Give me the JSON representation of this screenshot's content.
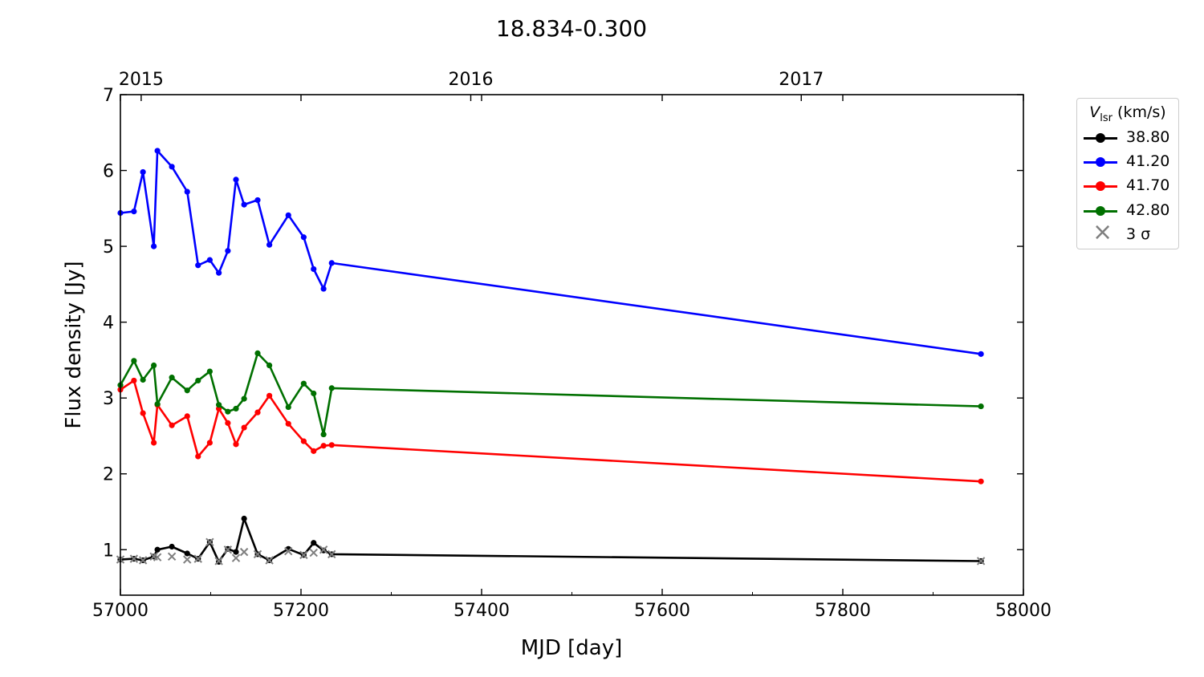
{
  "chart_data": {
    "type": "line",
    "title": "18.834-0.300",
    "xlabel": "MJD [day]",
    "ylabel": "Flux density [Jy]",
    "xlim": [
      57000,
      58000
    ],
    "ylim": [
      0.4,
      7.0
    ],
    "x_ticks": [
      "57000",
      "57200",
      "57400",
      "57600",
      "57800",
      "58000"
    ],
    "y_ticks": [
      "1",
      "2",
      "3",
      "4",
      "5",
      "6",
      "7"
    ],
    "top_axis_ticks": [
      {
        "label": "2015",
        "mjd": 57023
      },
      {
        "label": "2016",
        "mjd": 57388
      },
      {
        "label": "2017",
        "mjd": 57754
      }
    ],
    "legend": {
      "title_prefix": "V",
      "title_sub": "lsr",
      "title_suffix": " (km/s)",
      "location": "outside right, top",
      "sigma_label": "3 σ"
    },
    "series": [
      {
        "name": "38.80",
        "color": "#000000",
        "x": [
          57000,
          57015,
          57025,
          57037,
          57041,
          57057,
          57074,
          57086,
          57099,
          57109,
          57119,
          57128,
          57137,
          57152,
          57165,
          57186,
          57203,
          57214,
          57225,
          57234,
          57953
        ],
        "y": [
          0.87,
          0.88,
          0.86,
          0.91,
          1.0,
          1.04,
          0.95,
          0.88,
          1.1,
          0.84,
          1.01,
          0.97,
          1.41,
          0.94,
          0.86,
          1.01,
          0.93,
          1.09,
          0.99,
          0.94,
          0.85
        ]
      },
      {
        "name": "41.20",
        "color": "#0000ff",
        "x": [
          57000,
          57015,
          57025,
          57037,
          57041,
          57057,
          57074,
          57086,
          57099,
          57109,
          57119,
          57128,
          57137,
          57152,
          57165,
          57186,
          57203,
          57214,
          57225,
          57234,
          57953
        ],
        "y": [
          5.44,
          5.46,
          5.98,
          5.0,
          6.26,
          6.05,
          5.72,
          4.75,
          4.82,
          4.65,
          4.94,
          5.88,
          5.55,
          5.61,
          5.02,
          5.41,
          5.12,
          4.7,
          4.44,
          4.78,
          3.58
        ]
      },
      {
        "name": "41.70",
        "color": "#ff0000",
        "x": [
          57000,
          57015,
          57025,
          57037,
          57041,
          57057,
          57074,
          57086,
          57099,
          57109,
          57119,
          57128,
          57137,
          57152,
          57165,
          57186,
          57203,
          57214,
          57225,
          57234,
          57953
        ],
        "y": [
          3.11,
          3.23,
          2.8,
          2.41,
          2.91,
          2.64,
          2.76,
          2.23,
          2.41,
          2.86,
          2.67,
          2.39,
          2.61,
          2.81,
          3.03,
          2.66,
          2.43,
          2.3,
          2.37,
          2.38,
          1.9
        ]
      },
      {
        "name": "42.80",
        "color": "#007000",
        "x": [
          57000,
          57015,
          57025,
          57037,
          57041,
          57057,
          57074,
          57086,
          57099,
          57109,
          57119,
          57128,
          57137,
          57152,
          57165,
          57186,
          57203,
          57214,
          57225,
          57234,
          57953
        ],
        "y": [
          3.17,
          3.49,
          3.24,
          3.43,
          2.92,
          3.27,
          3.1,
          3.23,
          3.35,
          2.91,
          2.82,
          2.86,
          2.99,
          3.59,
          3.43,
          2.88,
          3.19,
          3.06,
          2.52,
          3.13,
          2.89
        ]
      }
    ],
    "sigma3": {
      "color": "#7f7f7f",
      "x": [
        57000,
        57015,
        57025,
        57037,
        57041,
        57057,
        57074,
        57086,
        57099,
        57109,
        57119,
        57128,
        57137,
        57152,
        57165,
        57186,
        57203,
        57214,
        57225,
        57234,
        57953
      ],
      "y": [
        0.87,
        0.88,
        0.86,
        0.91,
        0.9,
        0.91,
        0.87,
        0.88,
        1.1,
        0.85,
        1.0,
        0.89,
        0.97,
        0.94,
        0.86,
        0.98,
        0.93,
        0.96,
        1.0,
        0.94,
        0.85
      ]
    }
  }
}
